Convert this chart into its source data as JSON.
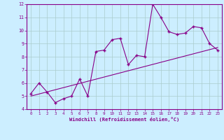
{
  "title": "",
  "xlabel": "Windchill (Refroidissement éolien,°C)",
  "bg_color": "#cceeff",
  "grid_color": "#aacccc",
  "line_color": "#880088",
  "x_data": [
    0,
    1,
    2,
    3,
    4,
    5,
    6,
    7,
    8,
    9,
    10,
    11,
    12,
    13,
    14,
    15,
    16,
    17,
    18,
    19,
    20,
    21,
    22,
    23
  ],
  "y_data": [
    5.2,
    6.0,
    5.3,
    4.5,
    4.8,
    5.0,
    6.3,
    5.0,
    8.4,
    8.5,
    9.3,
    9.4,
    7.4,
    8.1,
    8.0,
    12.0,
    11.0,
    9.9,
    9.7,
    9.8,
    10.3,
    10.2,
    9.0,
    8.5
  ],
  "trend_x": [
    0,
    23
  ],
  "trend_y": [
    5.0,
    8.7
  ],
  "xlim": [
    -0.5,
    23.5
  ],
  "ylim": [
    4,
    12
  ],
  "yticks": [
    4,
    5,
    6,
    7,
    8,
    9,
    10,
    11,
    12
  ],
  "xticks": [
    0,
    1,
    2,
    3,
    4,
    5,
    6,
    7,
    8,
    9,
    10,
    11,
    12,
    13,
    14,
    15,
    16,
    17,
    18,
    19,
    20,
    21,
    22,
    23
  ]
}
